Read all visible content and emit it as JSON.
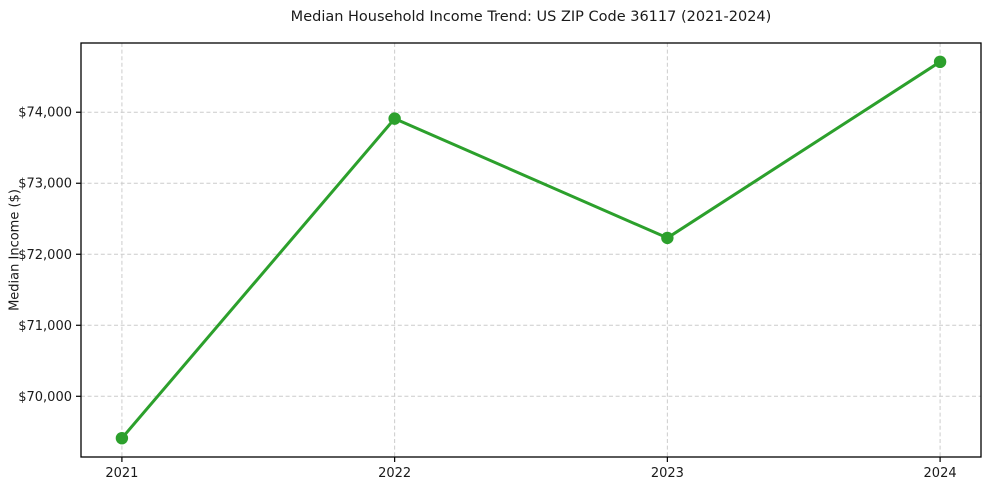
{
  "chart_data": {
    "type": "line",
    "title": "Median Household Income Trend: US ZIP Code 36117 (2021-2024)",
    "xlabel": "",
    "ylabel": "Median Income ($)",
    "x": [
      2021,
      2022,
      2023,
      2024
    ],
    "x_tick_labels": [
      "2021",
      "2022",
      "2023",
      "2024"
    ],
    "values": [
      69410,
      73910,
      72230,
      74710
    ],
    "yticks": [
      70000,
      71000,
      72000,
      73000,
      74000
    ],
    "ytick_labels": [
      "$70,000",
      "$71,000",
      "$72,000",
      "$73,000",
      "$74,000"
    ],
    "xlim": [
      2020.85,
      2024.15
    ],
    "ylim": [
      69145,
      74975
    ],
    "grid": true,
    "grid_style": "dashed",
    "legend": "none",
    "line_color": "#2ca02c",
    "marker": "circle",
    "marker_color": "#2ca02c",
    "grid_color": "#cccccc",
    "axis_color": "#000000",
    "text_color": "#1a1a1a",
    "background": "#ffffff"
  }
}
